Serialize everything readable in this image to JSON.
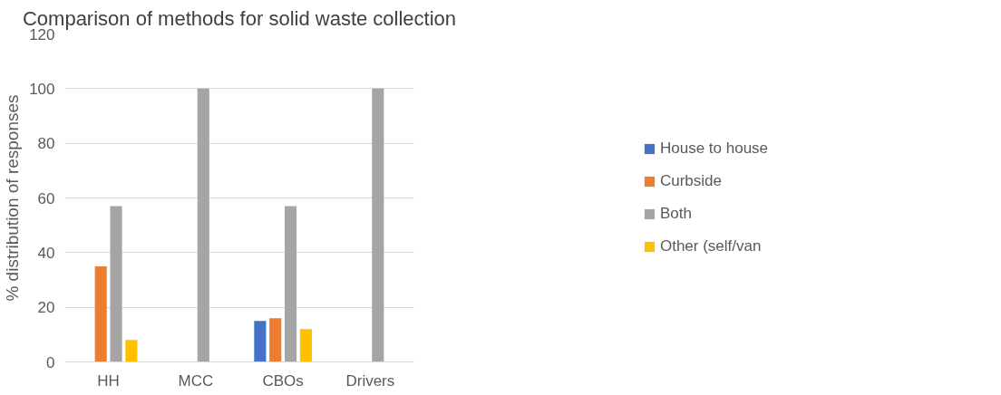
{
  "chart_data": {
    "type": "bar",
    "title": "Comparison of methods for solid waste collection",
    "ylabel": "% distribution of responses",
    "categories": [
      "HH",
      "MCC",
      "CBOs",
      "Drivers"
    ],
    "series": [
      {
        "name": "House to house",
        "color": "#4472c4",
        "values": [
          0,
          0,
          15,
          0
        ]
      },
      {
        "name": "Curbside",
        "color": "#ed7d31",
        "values": [
          35,
          0,
          16,
          0
        ]
      },
      {
        "name": "Both",
        "color": "#a5a5a5",
        "values": [
          57,
          100,
          57,
          100
        ]
      },
      {
        "name": "Other (self/van",
        "color": "#ffc000",
        "values": [
          8,
          0,
          12,
          0
        ]
      }
    ],
    "ylim": [
      0,
      120
    ],
    "yticks": [
      0,
      20,
      40,
      60,
      80,
      100,
      120
    ],
    "grid": "y",
    "legend": "right"
  }
}
